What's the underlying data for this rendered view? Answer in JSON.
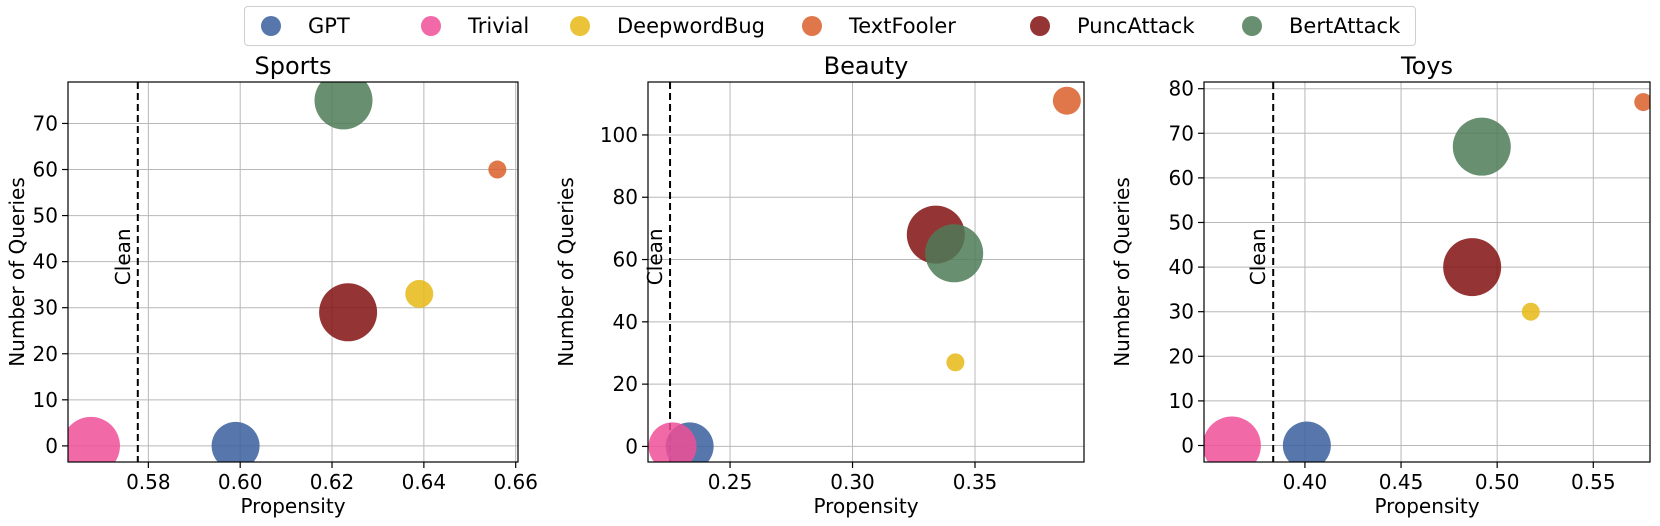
{
  "legend": {
    "entries": [
      {
        "name": "GPT",
        "color": "#3a5f9e"
      },
      {
        "name": "Trivial",
        "color": "#ee4f97"
      },
      {
        "name": "DeepwordBug",
        "color": "#e8b815"
      },
      {
        "name": "TextFooler",
        "color": "#d95f2a"
      },
      {
        "name": "PuncAttack",
        "color": "#821010"
      },
      {
        "name": "BertAttack",
        "color": "#4d7b57"
      }
    ]
  },
  "chart_data": [
    {
      "type": "scatter",
      "title": "Sports",
      "xlabel": "Propensity",
      "ylabel": "Number of Queries",
      "xlim": [
        0.5625,
        0.6605
      ],
      "ylim": [
        -3.5,
        79
      ],
      "xticks": [
        0.58,
        0.6,
        0.62,
        0.64,
        0.66
      ],
      "xtick_labels": [
        "0.58",
        "0.60",
        "0.62",
        "0.64",
        "0.66"
      ],
      "yticks": [
        0,
        10,
        20,
        30,
        40,
        50,
        60,
        70
      ],
      "ytick_labels": [
        "0",
        "10",
        "20",
        "30",
        "40",
        "50",
        "60",
        "70"
      ],
      "grid": true,
      "reference_line": {
        "label": "Clean",
        "x": 0.5777,
        "style": "dashed"
      },
      "series": [
        {
          "name": "GPT",
          "x": 0.599,
          "y": 0,
          "size": "medium"
        },
        {
          "name": "Trivial",
          "x": 0.5675,
          "y": 0,
          "size": "large"
        },
        {
          "name": "DeepwordBug",
          "x": 0.639,
          "y": 33,
          "size": "small"
        },
        {
          "name": "TextFooler",
          "x": 0.656,
          "y": 60,
          "size": "tiny"
        },
        {
          "name": "PuncAttack",
          "x": 0.6235,
          "y": 29,
          "size": "large"
        },
        {
          "name": "BertAttack",
          "x": 0.6225,
          "y": 75,
          "size": "large"
        }
      ]
    },
    {
      "type": "scatter",
      "title": "Beauty",
      "xlabel": "Propensity",
      "ylabel": "Number of Queries",
      "xlim": [
        0.2165,
        0.3945
      ],
      "ylim": [
        -5,
        117
      ],
      "xticks": [
        0.25,
        0.3,
        0.35
      ],
      "xtick_labels": [
        "0.25",
        "0.30",
        "0.35"
      ],
      "yticks": [
        0,
        20,
        40,
        60,
        80,
        100
      ],
      "ytick_labels": [
        "0",
        "20",
        "40",
        "60",
        "80",
        "100"
      ],
      "grid": true,
      "reference_line": {
        "label": "Clean",
        "x": 0.2255,
        "style": "dashed"
      },
      "series": [
        {
          "name": "GPT",
          "x": 0.2335,
          "y": 0,
          "size": "medium"
        },
        {
          "name": "Trivial",
          "x": 0.2265,
          "y": 0,
          "size": "medium"
        },
        {
          "name": "DeepwordBug",
          "x": 0.342,
          "y": 27,
          "size": "tiny"
        },
        {
          "name": "TextFooler",
          "x": 0.3875,
          "y": 111,
          "size": "small"
        },
        {
          "name": "PuncAttack",
          "x": 0.334,
          "y": 68,
          "size": "large"
        },
        {
          "name": "BertAttack",
          "x": 0.3415,
          "y": 62,
          "size": "large"
        }
      ]
    },
    {
      "type": "scatter",
      "title": "Toys",
      "xlabel": "Propensity",
      "ylabel": "Number of Queries",
      "xlim": [
        0.3475,
        0.5795
      ],
      "ylim": [
        -3.7,
        81.5
      ],
      "xticks": [
        0.4,
        0.45,
        0.5,
        0.55
      ],
      "xtick_labels": [
        "0.40",
        "0.45",
        "0.50",
        "0.55"
      ],
      "yticks": [
        0,
        10,
        20,
        30,
        40,
        50,
        60,
        70,
        80
      ],
      "ytick_labels": [
        "0",
        "10",
        "20",
        "30",
        "40",
        "50",
        "60",
        "70",
        "80"
      ],
      "grid": true,
      "reference_line": {
        "label": "Clean",
        "x": 0.3835,
        "style": "dashed"
      },
      "series": [
        {
          "name": "GPT",
          "x": 0.401,
          "y": 0,
          "size": "medium"
        },
        {
          "name": "Trivial",
          "x": 0.362,
          "y": 0,
          "size": "large"
        },
        {
          "name": "DeepwordBug",
          "x": 0.5175,
          "y": 30,
          "size": "tiny"
        },
        {
          "name": "TextFooler",
          "x": 0.576,
          "y": 77,
          "size": "tiny"
        },
        {
          "name": "PuncAttack",
          "x": 0.487,
          "y": 40,
          "size": "large"
        },
        {
          "name": "BertAttack",
          "x": 0.492,
          "y": 67,
          "size": "large"
        }
      ]
    }
  ]
}
